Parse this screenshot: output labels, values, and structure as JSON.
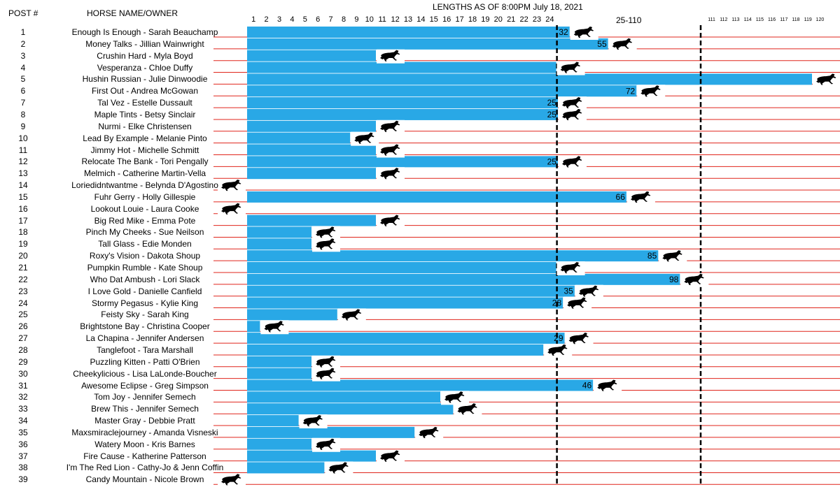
{
  "header": {
    "post_label": "POST #",
    "name_label": "HORSE NAME/OWNER",
    "title": "LENGTHS AS OF 8:00PM July 18, 2021",
    "range_label": "25-110"
  },
  "colors": {
    "bar": "#29A8E6",
    "row_line": "#E0251B",
    "marker_line": "#000000",
    "horse": "#000000"
  },
  "chart_data": {
    "type": "bar",
    "orientation": "horizontal",
    "title": "LENGTHS AS OF 8:00PM July 18, 2021",
    "xlabel": "Lengths",
    "axis_segments": [
      {
        "range": [
          1,
          24
        ],
        "ticks": [
          1,
          2,
          3,
          4,
          5,
          6,
          7,
          8,
          9,
          10,
          11,
          12,
          13,
          14,
          15,
          16,
          17,
          18,
          19,
          20,
          21,
          22,
          23,
          24
        ]
      },
      {
        "range": [
          25,
          110
        ],
        "label": "25-110"
      },
      {
        "range": [
          111,
          120
        ],
        "ticks": [
          111,
          112,
          113,
          114,
          115,
          116,
          117,
          118,
          119,
          120
        ]
      }
    ],
    "reference_lines": [
      24,
      110
    ],
    "posts": [
      "1",
      "2",
      "3",
      "4",
      "5",
      "6",
      "7",
      "8",
      "9",
      "10",
      "11",
      "12",
      "13",
      "14",
      "15",
      "16",
      "17",
      "18",
      "19",
      "20",
      "21",
      "22",
      "23",
      "24",
      "25",
      "26",
      "27",
      "28",
      "29",
      "30",
      "31",
      "32",
      "33",
      "34",
      "35",
      "36",
      "37",
      "38",
      "39"
    ],
    "categories": [
      "Enough Is Enough - Sarah Beauchamp",
      "Money Talks - Jillian Wainwright",
      "Crushin Hard - Myla Boyd",
      "Vesperanza - Chloe Duffy",
      "Hushin Russian - Julie Dinwoodie",
      "First Out - Andrea McGowan",
      "Tal Vez - Estelle Dussault",
      "Maple Tints - Betsy Sinclair",
      "Nurmi - Elke Christensen",
      "Lead By Example - Melanie Pinto",
      "Jimmy Hot - Michelle Schmitt",
      "Relocate The Bank - Tori Pengally",
      "Melmich - Catherine Martin-Vella",
      "Loriedidntwantme - Belynda D'Agostino",
      "Fuhr Gerry - Holly Gillespie",
      "Lookout Louie - Laura Cooke",
      "Big Red Mike - Emma Pote",
      "Pinch My Cheeks - Sue Neilson",
      "Tall Glass - Edie Monden",
      "Roxy's Vision - Dakota Shoup",
      "Pumpkin Rumble - Kate Shoup",
      "Who Dat Ambush - Lori Slack",
      "I Love Gold - Danielle Canfield",
      "Stormy Pegasus - Kylie King",
      "Feisty Sky - Sarah King",
      "Brightstone Bay - Christina Cooper",
      "La Chapina - Jennifer Andersen",
      "Tanglefoot - Tara Marshall",
      "Puzzling Kitten - Patti O'Brien",
      "Cheekylicious - Lisa LaLonde-Boucher",
      "Awesome Eclipse - Greg Simpson",
      "Tom Joy - Jennifer Semech",
      "Brew This - Jennifer Semech",
      "Master Gray - Debbie Pratt",
      "Maxsmiraclejourney - Amanda Visneski",
      "Watery Moon - Kris Barnes",
      "Fire Cause - Katherine Patterson",
      "I'm The Red Lion - Cathy-Jo & Jenn Coffin",
      "Candy Mountain - Nicole Brown"
    ],
    "values": [
      32,
      55,
      10,
      24,
      120,
      72,
      25,
      25,
      10,
      8,
      10,
      25,
      10,
      0,
      66,
      0,
      10,
      5,
      5,
      85,
      24,
      98,
      35,
      28,
      7,
      1,
      29,
      23,
      5,
      5,
      46,
      15,
      16,
      4,
      13,
      5,
      10,
      6,
      0
    ],
    "value_labels": [
      "32",
      "55",
      "",
      "",
      "",
      "72",
      "25",
      "25",
      "",
      "",
      "",
      "25",
      "",
      "",
      "66",
      "",
      "",
      "",
      "",
      "85",
      "",
      "98",
      "35",
      "28",
      "",
      "",
      "29",
      "",
      "",
      "",
      "46",
      "",
      "",
      "",
      "",
      "",
      "",
      "",
      ""
    ]
  }
}
